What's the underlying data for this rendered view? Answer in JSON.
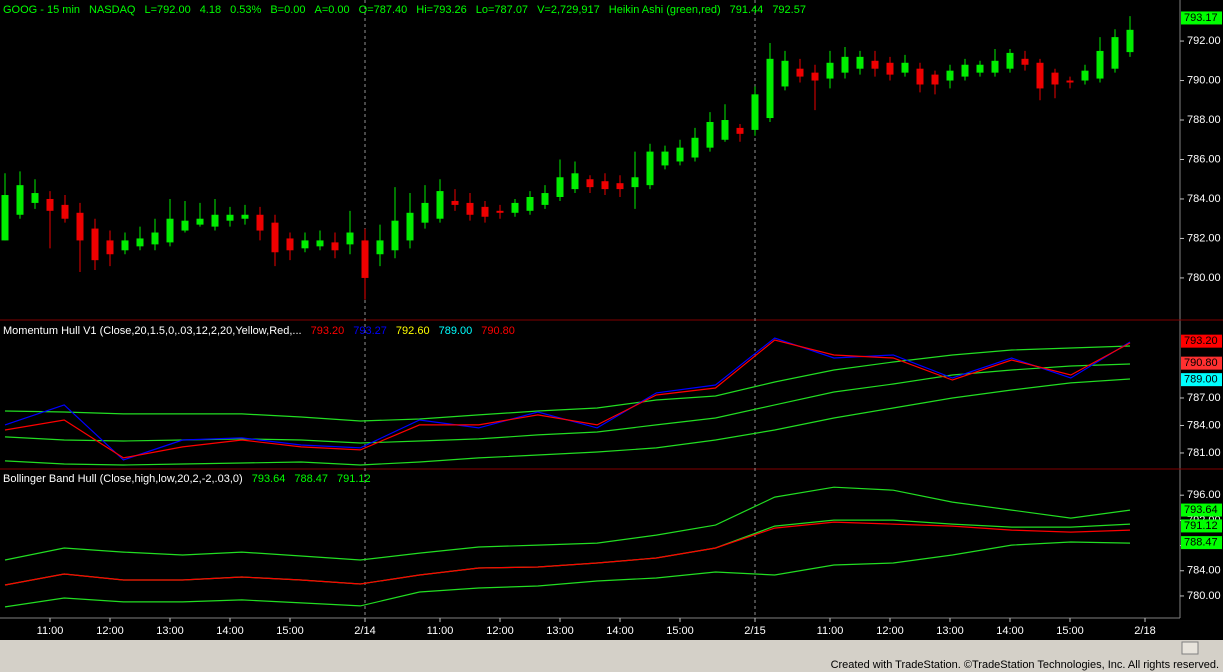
{
  "chart_data": [
    {
      "type": "candlestick",
      "header": [
        "GOOG - 15 min",
        "NASDAQ",
        "L=792.00",
        "4.18",
        "0.53%",
        "B=0.00",
        "A=0.00",
        "O=787.40",
        "Hi=793.26",
        "Lo=787.07",
        "V=2,729,917",
        "Heikin Ashi (green,red)",
        "791.44",
        "792.57"
      ],
      "header_color": "#00ff00",
      "up_color": "#00ee00",
      "down_color": "#ee0000",
      "categories": [
        null,
        null,
        null,
        "11:00",
        null,
        null,
        null,
        "12:00",
        null,
        null,
        null,
        "13:00",
        null,
        null,
        null,
        "14:00",
        null,
        null,
        null,
        "15:00",
        null,
        null,
        null,
        null,
        "2/14",
        null,
        null,
        null,
        null,
        "11:00",
        null,
        null,
        null,
        "12:00",
        null,
        null,
        null,
        "13:00",
        null,
        null,
        null,
        "14:00",
        null,
        null,
        null,
        "15:00",
        null,
        null,
        null,
        null,
        "2/15",
        null,
        null,
        null,
        null,
        "11:00",
        null,
        null,
        null,
        "12:00",
        null,
        null,
        null,
        "13:00",
        null,
        null,
        null,
        "14:00",
        null,
        null,
        null,
        "15:00",
        null,
        null,
        null,
        null,
        "2/18"
      ],
      "open": [
        781.9,
        783.2,
        783.8,
        784.0,
        783.7,
        783.3,
        782.5,
        781.9,
        781.4,
        781.6,
        781.7,
        781.8,
        782.4,
        782.7,
        782.6,
        782.9,
        783.0,
        783.2,
        782.8,
        782.0,
        781.5,
        781.6,
        781.8,
        781.7,
        781.9,
        781.2,
        781.4,
        781.9,
        782.8,
        783.0,
        783.9,
        783.8,
        783.6,
        783.4,
        783.3,
        783.4,
        783.7,
        784.1,
        784.5,
        785.0,
        784.9,
        784.8,
        784.6,
        784.7,
        785.7,
        785.9,
        786.1,
        786.6,
        787.0,
        787.6,
        787.5,
        788.1,
        789.7,
        790.6,
        790.4,
        790.1,
        790.4,
        790.6,
        791.0,
        790.9,
        790.4,
        790.6,
        790.3,
        790.0,
        790.2,
        790.4,
        790.4,
        790.6,
        791.1,
        790.9,
        790.4,
        790.0,
        790.0,
        790.1,
        790.6,
        791.44,
        null
      ],
      "high": [
        785.3,
        785.4,
        785.0,
        784.4,
        784.2,
        783.8,
        783.0,
        782.4,
        782.3,
        782.6,
        783.0,
        784.0,
        783.9,
        783.8,
        784.0,
        783.6,
        783.7,
        783.6,
        783.2,
        782.3,
        782.3,
        782.4,
        782.3,
        783.4,
        782.5,
        782.7,
        784.6,
        784.3,
        784.7,
        785.0,
        784.5,
        784.3,
        783.9,
        783.7,
        784.0,
        784.4,
        784.7,
        786.0,
        785.9,
        785.2,
        785.3,
        785.2,
        786.4,
        786.8,
        786.7,
        787.0,
        787.6,
        788.4,
        788.8,
        787.8,
        789.7,
        791.9,
        791.5,
        791.1,
        790.8,
        791.5,
        791.7,
        791.5,
        791.5,
        791.2,
        791.3,
        790.9,
        790.5,
        790.8,
        791.1,
        791.0,
        791.6,
        791.6,
        791.5,
        791.1,
        790.6,
        790.2,
        790.8,
        792.2,
        792.6,
        793.26,
        null
      ],
      "low": [
        781.9,
        783.0,
        783.5,
        781.5,
        782.8,
        780.3,
        780.4,
        780.6,
        781.2,
        781.4,
        781.4,
        781.6,
        782.3,
        782.6,
        782.4,
        782.6,
        782.7,
        781.9,
        780.6,
        780.9,
        781.3,
        781.4,
        781.0,
        781.2,
        778.9,
        780.6,
        781.0,
        781.5,
        782.5,
        782.8,
        783.4,
        782.9,
        782.8,
        783.0,
        783.1,
        783.2,
        783.5,
        783.9,
        784.3,
        784.3,
        784.2,
        784.1,
        783.5,
        784.5,
        785.5,
        785.7,
        785.9,
        786.4,
        786.9,
        786.9,
        787.2,
        787.9,
        789.5,
        789.9,
        788.5,
        789.6,
        790.1,
        790.3,
        790.2,
        790.0,
        790.2,
        789.4,
        789.3,
        789.6,
        790.0,
        790.2,
        790.2,
        790.4,
        790.5,
        789.0,
        789.1,
        789.6,
        789.8,
        789.9,
        790.4,
        791.2,
        null
      ],
      "close": [
        784.2,
        784.7,
        784.3,
        783.4,
        783.0,
        781.9,
        780.9,
        781.2,
        781.9,
        782.0,
        782.3,
        783.0,
        782.9,
        783.0,
        783.2,
        783.2,
        783.2,
        782.4,
        781.3,
        781.4,
        781.9,
        781.9,
        781.4,
        782.3,
        780.0,
        781.9,
        782.9,
        783.3,
        783.8,
        784.4,
        783.7,
        783.2,
        783.1,
        783.3,
        783.8,
        784.1,
        784.3,
        785.1,
        785.3,
        784.6,
        784.5,
        784.5,
        785.1,
        786.4,
        786.4,
        786.6,
        787.1,
        787.9,
        788.0,
        787.3,
        789.3,
        791.1,
        791.0,
        790.2,
        790.0,
        790.9,
        791.2,
        791.2,
        790.6,
        790.3,
        790.9,
        789.8,
        789.8,
        790.5,
        790.8,
        790.8,
        791.0,
        791.4,
        790.8,
        789.6,
        789.8,
        789.9,
        790.5,
        791.5,
        792.2,
        792.57,
        null
      ],
      "ylim": [
        777.97,
        794.08
      ],
      "yticks": [
        {
          "value": 780,
          "label": "780.00"
        },
        {
          "value": 782,
          "label": "782.00"
        },
        {
          "value": 784,
          "label": "784.00"
        },
        {
          "value": 786,
          "label": "786.00"
        },
        {
          "value": 788,
          "label": "788.00"
        },
        {
          "value": 790,
          "label": "790.00"
        },
        {
          "value": 792,
          "label": "792.00"
        }
      ],
      "axis_markers": [
        {
          "value": 793.17,
          "label": "793.17",
          "color": "#00ff00"
        }
      ]
    },
    {
      "type": "line",
      "title": "Momentum Hull V1 (Close,20,1.5,0,.03,12,2,20,Yellow,Red,...",
      "header_values": [
        {
          "label": "793.20",
          "color": "#ff0000"
        },
        {
          "label": "793.27",
          "color": "#0000ff"
        },
        {
          "label": "792.60",
          "color": "#ffff00"
        },
        {
          "label": "789.00",
          "color": "#00ffff"
        },
        {
          "label": "790.80",
          "color": "#ff0000"
        }
      ],
      "series": [
        {
          "color": "#22dd22",
          "values": [
            785.58,
            785.47,
            785.26,
            785.26,
            785.26,
            784.93,
            784.49,
            784.71,
            785.15,
            785.58,
            785.91,
            786.78,
            787.22,
            788.74,
            790.05,
            790.93,
            791.69,
            792.23,
            792.45,
            792.67
          ]
        },
        {
          "color": "#22dd22",
          "values": [
            782.75,
            782.42,
            782.31,
            782.42,
            782.53,
            782.42,
            782.09,
            782.31,
            782.53,
            782.97,
            783.29,
            784.06,
            784.82,
            786.24,
            787.65,
            788.53,
            789.51,
            790.05,
            790.49,
            790.71
          ]
        },
        {
          "color": "#22dd22",
          "values": [
            780.13,
            779.8,
            779.69,
            779.8,
            779.91,
            780.02,
            779.69,
            780.02,
            780.46,
            780.78,
            781.11,
            781.55,
            782.42,
            783.51,
            784.82,
            785.91,
            787.0,
            787.87,
            788.64,
            789.07
          ]
        },
        {
          "color": "#0000ff",
          "values": [
            784.06,
            786.24,
            780.24,
            782.42,
            782.64,
            781.87,
            781.55,
            784.6,
            783.73,
            785.47,
            783.73,
            787.55,
            788.42,
            793.54,
            791.36,
            791.69,
            789.18,
            791.36,
            789.18,
            793.11
          ]
        },
        {
          "color": "#ff0000",
          "values": [
            783.51,
            784.6,
            780.46,
            781.66,
            782.42,
            781.66,
            781.33,
            784.06,
            784.06,
            785.15,
            784.06,
            787.33,
            788.09,
            793.33,
            791.69,
            791.36,
            788.96,
            791.14,
            789.51,
            793.0
          ]
        }
      ],
      "ylim": [
        779.36,
        795.29
      ],
      "yticks": [
        {
          "value": 781,
          "label": "781.00"
        },
        {
          "value": 784,
          "label": "784.00"
        },
        {
          "value": 787,
          "label": "787.00"
        }
      ],
      "axis_markers": [
        {
          "value": 793.2,
          "label": "793.20",
          "color": "#ff0000"
        },
        {
          "value": 790.8,
          "label": "790.80",
          "color": "#ff3030"
        },
        {
          "value": 789.0,
          "label": "789.00",
          "color": "#00ffff"
        }
      ]
    },
    {
      "type": "line",
      "title": "Bollinger Band Hull (Close,high,low,20,2,-2,.03,0)",
      "header_values": [
        {
          "label": "793.64",
          "color": "#00ff00"
        },
        {
          "label": "788.47",
          "color": "#00ff00"
        },
        {
          "label": "791.12",
          "color": "#00ff00"
        }
      ],
      "series": [
        {
          "color": "#22dd22",
          "values": [
            785.71,
            787.61,
            786.97,
            786.5,
            786.97,
            786.34,
            785.71,
            786.81,
            787.77,
            788.08,
            788.4,
            789.67,
            791.25,
            795.69,
            797.27,
            796.8,
            794.9,
            793.63,
            792.36,
            793.63
          ]
        },
        {
          "color": "#22dd22",
          "values": [
            781.74,
            783.49,
            782.54,
            782.54,
            783.01,
            782.54,
            781.9,
            783.33,
            784.44,
            784.6,
            785.23,
            786.02,
            787.61,
            791.09,
            792.04,
            792.04,
            791.41,
            790.94,
            790.94,
            791.41
          ]
        },
        {
          "color": "#ff0000",
          "values": [
            781.74,
            783.49,
            782.54,
            782.54,
            783.01,
            782.54,
            781.9,
            783.33,
            784.44,
            784.6,
            785.23,
            786.02,
            787.61,
            790.78,
            791.73,
            791.41,
            791.09,
            790.46,
            790.14,
            790.46
          ]
        },
        {
          "color": "#22dd22",
          "values": [
            778.26,
            779.68,
            779.05,
            779.05,
            779.37,
            778.89,
            778.42,
            780.63,
            781.27,
            781.58,
            782.38,
            782.85,
            783.8,
            783.33,
            784.91,
            785.23,
            786.5,
            788.08,
            788.56,
            788.4
          ]
        }
      ],
      "ylim": [
        776.5,
        800.0
      ],
      "yticks": [
        {
          "value": 780,
          "label": "780.00"
        },
        {
          "value": 784,
          "label": "784.00"
        },
        {
          "value": 788,
          "label": "788.00"
        },
        {
          "value": 792,
          "label": "792.00"
        },
        {
          "value": 796,
          "label": "796.00"
        }
      ],
      "axis_markers": [
        {
          "value": 793.64,
          "label": "793.64",
          "color": "#00ff00"
        },
        {
          "value": 791.12,
          "label": "791.12",
          "color": "#00ff00"
        },
        {
          "value": 788.47,
          "label": "788.47",
          "color": "#00ff00"
        }
      ]
    }
  ],
  "footer": "Created with TradeStation. ©TradeStation Technologies, Inc. All rights reserved."
}
